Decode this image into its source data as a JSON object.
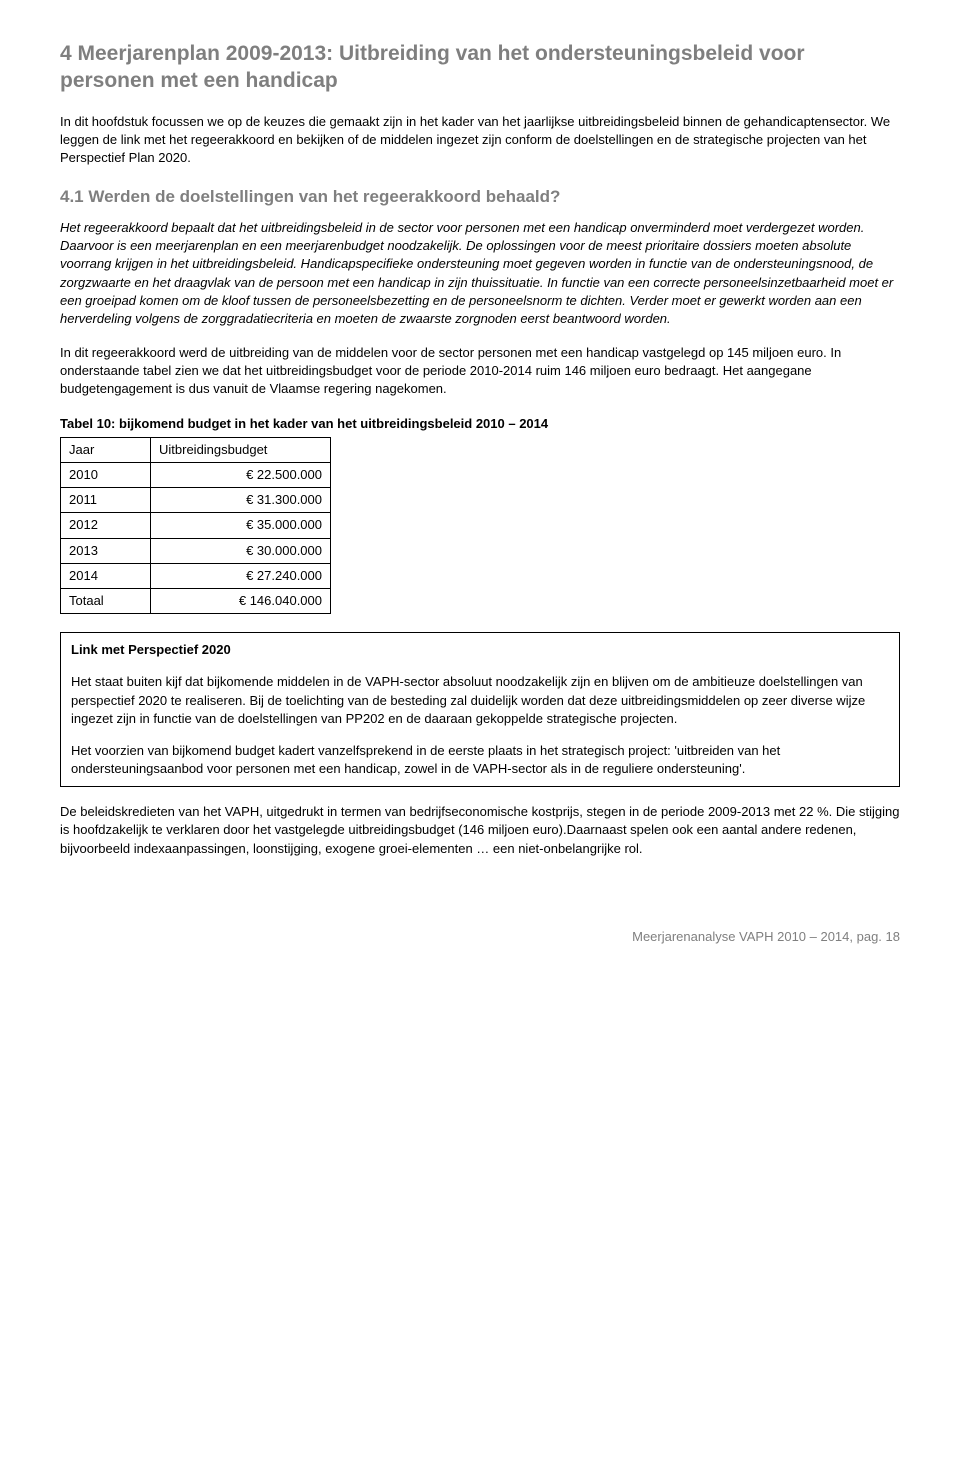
{
  "heading": "4  Meerjarenplan 2009-2013: Uitbreiding van het ondersteuningsbeleid voor personen met een handicap",
  "intro": "In dit hoofdstuk focussen we op de keuzes die gemaakt zijn in het kader van het jaarlijkse uitbreidingsbeleid binnen de gehandicaptensector. We leggen de link met het regeerakkoord en bekijken of de middelen ingezet zijn conform de doelstellingen en de strategische projecten van het Perspectief Plan 2020.",
  "sub_heading": "4.1  Werden de doelstellingen van het regeerakkoord behaald?",
  "italic_para": "Het regeerakkoord bepaalt dat het uitbreidingsbeleid in de sector voor personen met een handicap onverminderd moet verdergezet worden. Daarvoor is een meerjarenplan en een meerjarenbudget noodzakelijk. De oplossingen voor de meest prioritaire dossiers moeten absolute voorrang krijgen in het uitbreidingsbeleid. Handicapspecifieke ondersteuning moet gegeven worden in functie van de ondersteuningsnood, de zorgzwaarte en het draagvlak van de persoon met een handicap in zijn thuissituatie. In functie van een correcte personeelsinzetbaarheid moet er een groeipad komen om de kloof tussen de personeelsbezetting en de personeelsnorm te dichten. Verder moet er gewerkt worden aan een herverdeling volgens de zorggradatiecriteria en moeten de zwaarste zorgnoden eerst beantwoord worden.",
  "para_after_italic": "In dit regeerakkoord werd de uitbreiding van de middelen voor de sector personen met een handicap vastgelegd op 145 miljoen euro. In onderstaande tabel zien we dat het uitbreidingsbudget voor de periode 2010-2014 ruim 146 miljoen euro bedraagt. Het aangegane budgetengagement is dus vanuit de Vlaamse regering nagekomen.",
  "table": {
    "caption": "Tabel 10: bijkomend budget in het kader van het uitbreidingsbeleid 2010 – 2014",
    "header": {
      "col1": "Jaar",
      "col2": "Uitbreidingsbudget"
    },
    "rows": [
      {
        "year": "2010",
        "amount": "€ 22.500.000"
      },
      {
        "year": "2011",
        "amount": "€ 31.300.000"
      },
      {
        "year": "2012",
        "amount": "€ 35.000.000"
      },
      {
        "year": "2013",
        "amount": "€ 30.000.000"
      },
      {
        "year": "2014",
        "amount": "€ 27.240.000"
      },
      {
        "year": "Totaal",
        "amount": "€ 146.040.000"
      }
    ]
  },
  "linkbox": {
    "title": "Link met Perspectief 2020",
    "p1": "Het staat buiten kijf dat bijkomende middelen in de VAPH-sector absoluut noodzakelijk zijn en blijven om de ambitieuze doelstellingen van perspectief 2020 te realiseren. Bij de toelichting van de besteding zal duidelijk worden dat deze uitbreidingsmiddelen op zeer diverse wijze ingezet zijn in functie van de doelstellingen van PP202 en de daaraan gekoppelde strategische projecten.",
    "p2": "Het voorzien van bijkomend budget kadert vanzelfsprekend in de eerste plaats in het strategisch project: 'uitbreiden van het ondersteuningsaanbod voor personen met een handicap, zowel in de VAPH-sector als in de reguliere ondersteuning'."
  },
  "closing": "De beleidskredieten van het VAPH, uitgedrukt in termen van bedrijfseconomische kostprijs, stegen in de periode 2009-2013 met 22 %. Die stijging is hoofdzakelijk te verklaren door het vastgelegde uitbreidingsbudget (146 miljoen euro).Daarnaast spelen ook een aantal andere redenen, bijvoorbeeld indexaanpassingen, loonstijging, exogene groei-elementen … een niet-onbelangrijke rol.",
  "footer": "Meerjarenanalyse VAPH 2010 – 2014, pag. 18",
  "colors": {
    "heading": "#7f7f7f",
    "text": "#000000",
    "background": "#ffffff",
    "border": "#000000"
  }
}
